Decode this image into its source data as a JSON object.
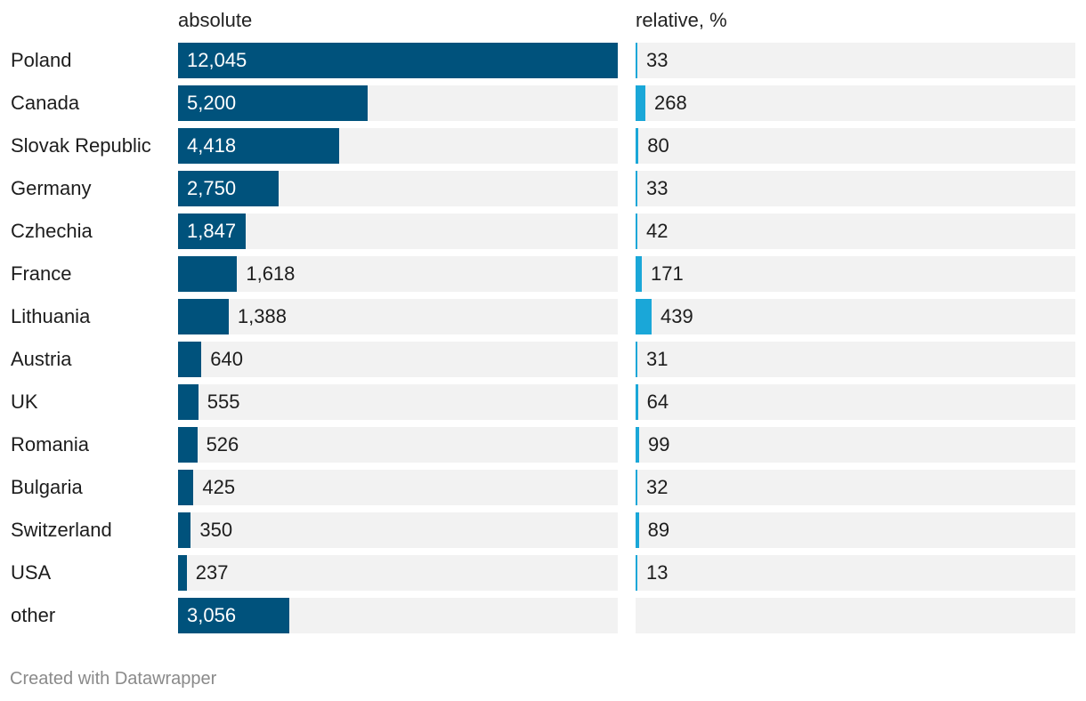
{
  "chart_data": {
    "type": "bar",
    "orientation": "horizontal",
    "categories": [
      "Poland",
      "Canada",
      "Slovak Republic",
      "Germany",
      "Czhechia",
      "France",
      "Lithuania",
      "Austria",
      "UK",
      "Romania",
      "Bulgaria",
      "Switzerland",
      "USA",
      "other"
    ],
    "series": [
      {
        "name": "absolute",
        "values": [
          12045,
          5200,
          4418,
          2750,
          1847,
          1618,
          1388,
          640,
          555,
          526,
          425,
          350,
          237,
          3056
        ],
        "color": "#00527c",
        "xlim": [
          0,
          12045
        ]
      },
      {
        "name": "relative, %",
        "values": [
          33,
          268,
          80,
          33,
          42,
          171,
          439,
          31,
          64,
          99,
          32,
          89,
          13,
          null
        ],
        "color": "#1aa7d8",
        "xlim": [
          0,
          12045
        ]
      }
    ],
    "headers": {
      "absolute": "absolute",
      "relative": "relative, %"
    },
    "grid": false,
    "legend": "none",
    "track_color": "#f2f2f2"
  },
  "footer": "Created with Datawrapper"
}
